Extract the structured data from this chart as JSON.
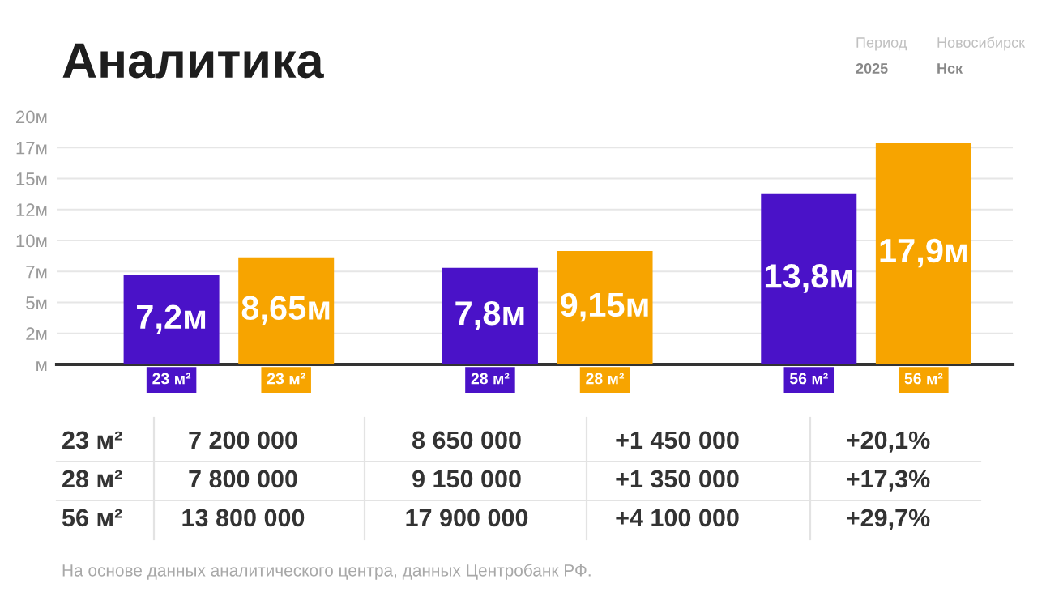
{
  "chart_data": {
    "type": "bar",
    "title": "Аналитика",
    "categories": [
      "23 м²",
      "28 м²",
      "56 м²"
    ],
    "series": [
      {
        "color": "#4a12c8",
        "values": [
          7.2,
          7.8,
          13.8
        ],
        "value_labels": [
          "7,2м",
          "7,8м",
          "13,8м"
        ]
      },
      {
        "color": "#f7a400",
        "values": [
          8.65,
          9.15,
          17.9
        ],
        "value_labels": [
          "8,65м",
          "9,15м",
          "17,9м"
        ]
      }
    ],
    "ylim": [
      0,
      20
    ],
    "yticks": [
      {
        "value": 0,
        "label": "м"
      },
      {
        "value": 2.5,
        "label": "2м"
      },
      {
        "value": 5,
        "label": "5м"
      },
      {
        "value": 7.5,
        "label": "7м"
      },
      {
        "value": 10,
        "label": "10м"
      },
      {
        "value": 12.5,
        "label": "12м"
      },
      {
        "value": 15,
        "label": "15м"
      },
      {
        "value": 17.5,
        "label": "17м"
      },
      {
        "value": 20,
        "label": "20м"
      }
    ],
    "grid": "y",
    "annotations": [
      "Период",
      "Новосибирск",
      "2025",
      "Нск",
      "23 м²",
      "7 200 000",
      "8 650 000",
      "+1 450 000",
      "+20,1%",
      "28 м²",
      "7 800 000",
      "9 150 000",
      "+1 350 000",
      "+17,3%",
      "56 м²",
      "13 800 000",
      "17 900 000",
      "+4 100 000",
      "+29,7%",
      "На основе данных аналитического центра, данных Центробанк РФ."
    ]
  }
}
